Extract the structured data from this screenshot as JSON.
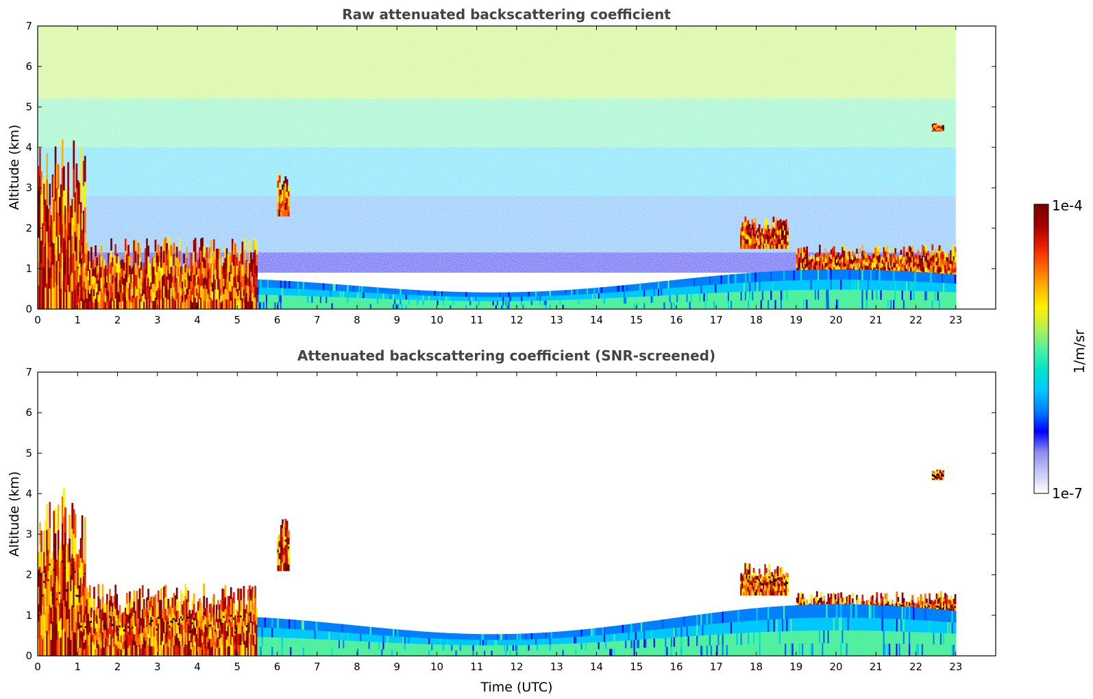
{
  "chart_data": [
    {
      "type": "heatmap",
      "title": "Raw attenuated backscattering coefficient",
      "xlabel": "",
      "ylabel": "Altitude (km)",
      "xlim": [
        0,
        24
      ],
      "ylim": [
        0,
        7
      ],
      "xticks": [
        "0",
        "1",
        "2",
        "3",
        "4",
        "5",
        "6",
        "7",
        "8",
        "9",
        "10",
        "11",
        "12",
        "13",
        "14",
        "15",
        "16",
        "17",
        "18",
        "19",
        "20",
        "21",
        "22",
        "23"
      ],
      "yticks": [
        "0",
        "1",
        "2",
        "3",
        "4",
        "5",
        "6",
        "7"
      ],
      "data_end_time": 23,
      "features": [
        {
          "time": [
            0,
            1.2
          ],
          "altitude": [
            0,
            4.2
          ],
          "level": "high"
        },
        {
          "time": [
            1.0,
            5.5
          ],
          "altitude": [
            0,
            1.8
          ],
          "level": "high"
        },
        {
          "time": [
            6.0,
            6.3
          ],
          "altitude": [
            2.3,
            3.4
          ],
          "level": "high"
        },
        {
          "time": [
            17.6,
            18.8
          ],
          "altitude": [
            1.5,
            2.3
          ],
          "level": "high"
        },
        {
          "time": [
            19.0,
            23.0
          ],
          "altitude": [
            0.8,
            1.6
          ],
          "level": "high"
        },
        {
          "time": [
            22.4,
            22.7
          ],
          "altitude": [
            4.4,
            4.6
          ],
          "level": "high"
        },
        {
          "time": [
            5.5,
            23.0
          ],
          "altitude": [
            0,
            1.0
          ],
          "level": "low-medium"
        }
      ]
    },
    {
      "type": "heatmap",
      "title": "Attenuated backscattering coefficient (SNR-screened)",
      "xlabel": "Time (UTC)",
      "ylabel": "Altitude (km)",
      "xlim": [
        0,
        24
      ],
      "ylim": [
        0,
        7
      ],
      "xticks": [
        "0",
        "1",
        "2",
        "3",
        "4",
        "5",
        "6",
        "7",
        "8",
        "9",
        "10",
        "11",
        "12",
        "13",
        "14",
        "15",
        "16",
        "17",
        "18",
        "19",
        "20",
        "21",
        "22",
        "23"
      ],
      "yticks": [
        "0",
        "1",
        "2",
        "3",
        "4",
        "5",
        "6",
        "7"
      ],
      "data_end_time": 23,
      "features": [
        {
          "time": [
            0,
            1.2
          ],
          "altitude": [
            0,
            4.2
          ],
          "level": "high"
        },
        {
          "time": [
            1.0,
            5.5
          ],
          "altitude": [
            0,
            1.8
          ],
          "level": "high"
        },
        {
          "time": [
            6.0,
            6.3
          ],
          "altitude": [
            2.1,
            3.4
          ],
          "level": "high"
        },
        {
          "time": [
            17.6,
            18.8
          ],
          "altitude": [
            1.5,
            2.3
          ],
          "level": "high"
        },
        {
          "time": [
            19.0,
            23.0
          ],
          "altitude": [
            0.8,
            1.6
          ],
          "level": "high"
        },
        {
          "time": [
            22.4,
            22.7
          ],
          "altitude": [
            4.35,
            4.6
          ],
          "level": "high"
        },
        {
          "time": [
            5.5,
            23.0
          ],
          "altitude": [
            0,
            1.3
          ],
          "level": "low-medium"
        }
      ]
    }
  ],
  "colorbar": {
    "label": "1/m/sr",
    "max_label": "1e-4",
    "min_label": "1e-7",
    "scale": "log",
    "colormap": [
      "#ffffff",
      "#c8c8f5",
      "#8c8cf0",
      "#0000ff",
      "#0080ff",
      "#00c8ff",
      "#00e6c8",
      "#50f0a0",
      "#b4f050",
      "#fff000",
      "#ffb400",
      "#ff6400",
      "#e61e00",
      "#a00000",
      "#7a0000"
    ]
  }
}
